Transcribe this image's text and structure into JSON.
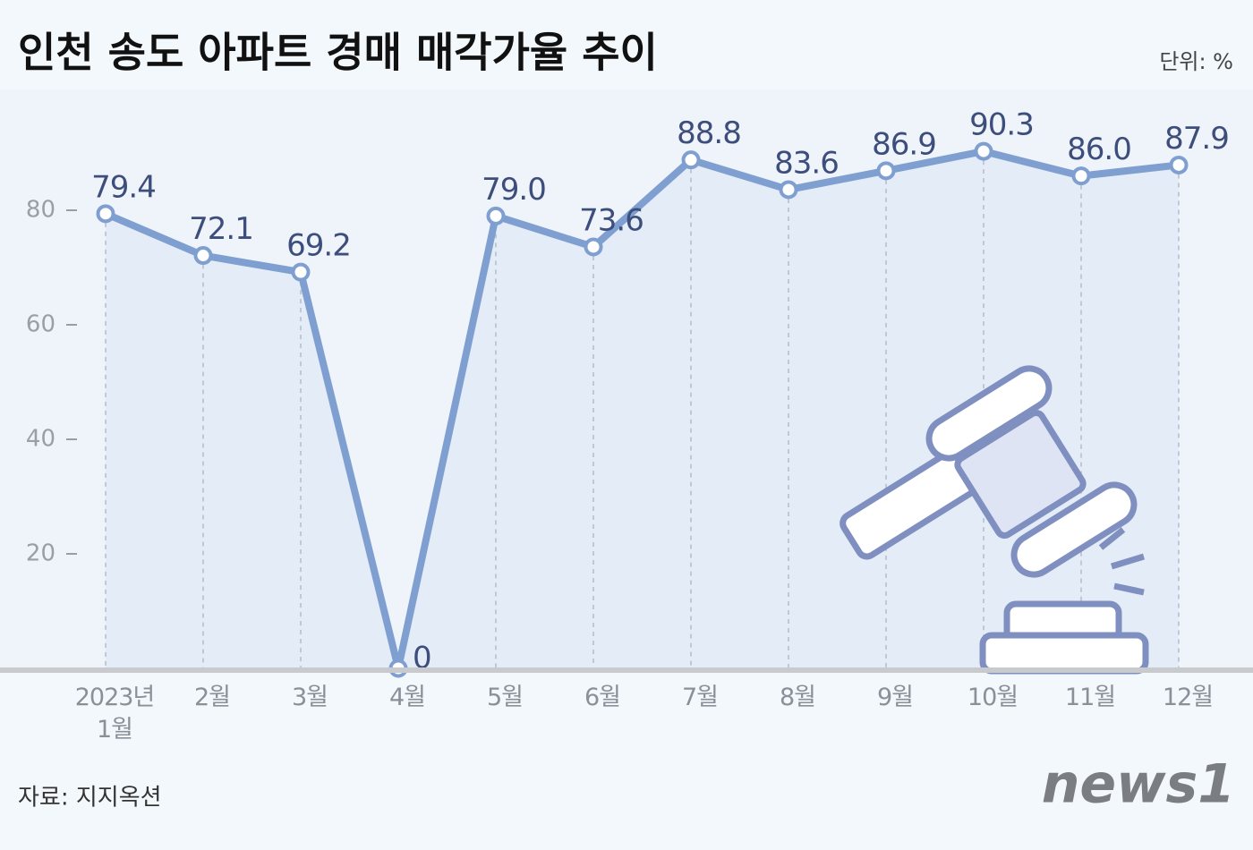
{
  "chart_data": {
    "type": "line",
    "title": "인천 송도 아파트 경매 매각가율 추이",
    "unit": "단위: %",
    "source": "자료: 지지옥션",
    "logo": "news1",
    "categories": [
      "2023년\n1월",
      "2월",
      "3월",
      "4월",
      "5월",
      "6월",
      "7월",
      "8월",
      "9월",
      "10월",
      "11월",
      "12월"
    ],
    "values": [
      79.4,
      72.1,
      69.2,
      0,
      79.0,
      73.6,
      88.8,
      83.6,
      86.9,
      90.3,
      86.0,
      87.9
    ],
    "value_labels": [
      "79.4",
      "72.1",
      "69.2",
      "0",
      "79.0",
      "73.6",
      "88.8",
      "83.6",
      "86.9",
      "90.3",
      "86.0",
      "87.9"
    ],
    "color": "#7f9fd1",
    "ylim": [
      0,
      100
    ],
    "yticks": [
      20,
      40,
      60,
      80
    ]
  }
}
